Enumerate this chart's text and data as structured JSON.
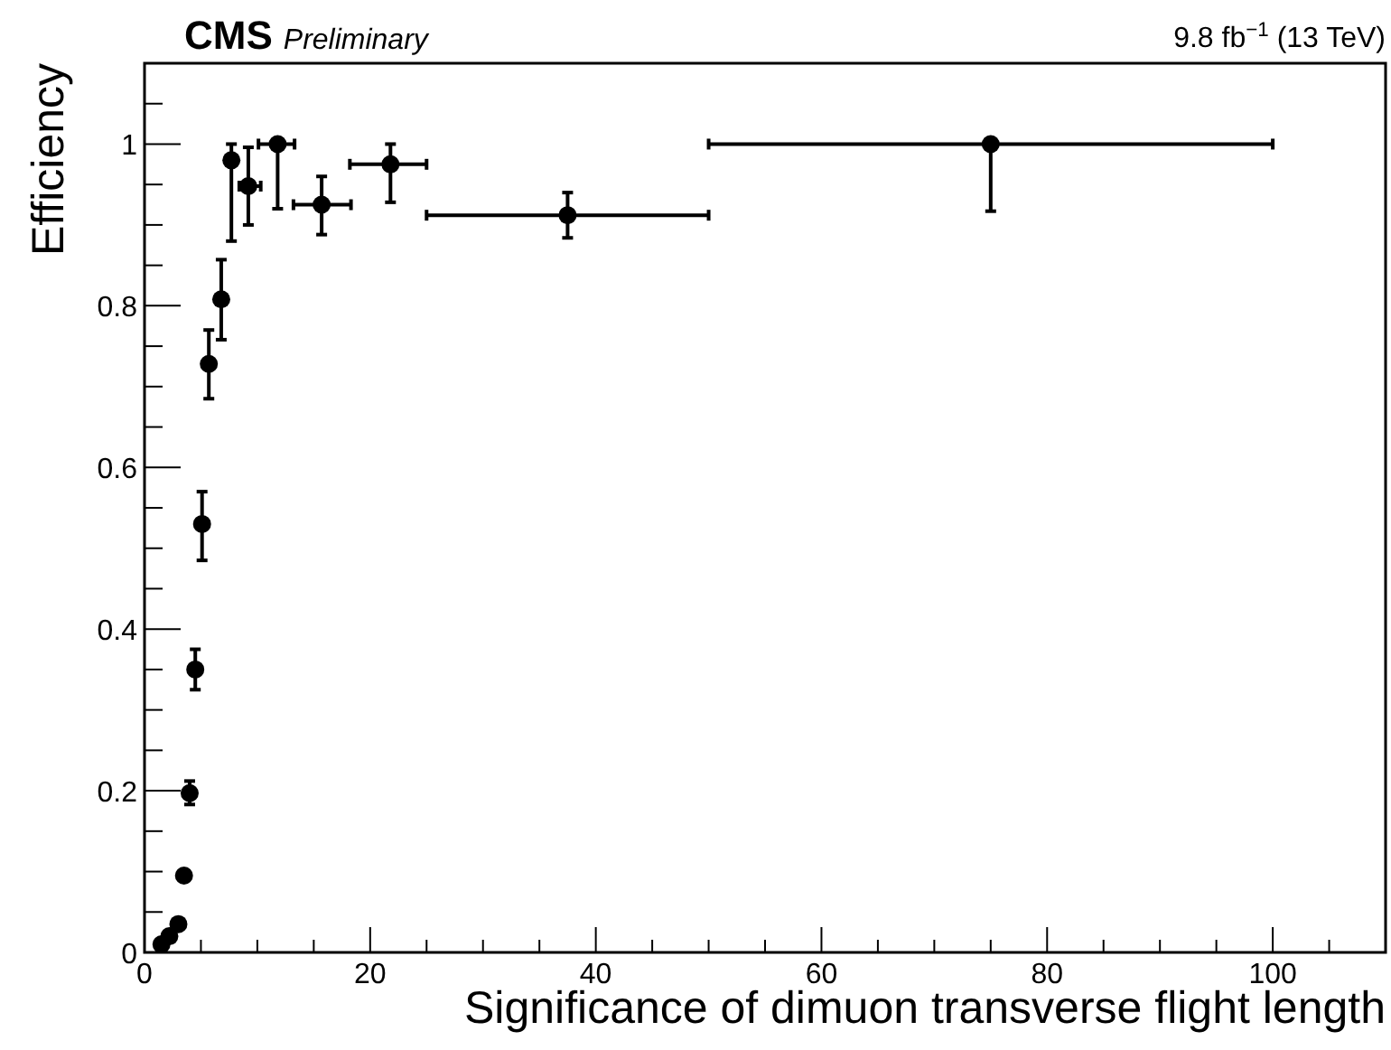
{
  "chart_data": {
    "type": "scatter",
    "title": "CMS",
    "subtitle": "Preliminary",
    "annotations": [
      "9.8 fb$^{−1}$ (13 TeV)"
    ],
    "xlabel": "Significance of dimuon transverse flight length",
    "ylabel": "Efficiency",
    "marker": "circle",
    "xlim": [
      0,
      110
    ],
    "ylim": [
      0,
      1.1
    ],
    "xticks": [
      0,
      {
        "value": 5,
        "label": null
      },
      {
        "value": 10,
        "label": null
      },
      {
        "value": 15,
        "label": null
      },
      20,
      {
        "value": 25,
        "label": null
      },
      {
        "value": 30,
        "label": null
      },
      {
        "value": 35,
        "label": null
      },
      40,
      {
        "value": 45,
        "label": null
      },
      {
        "value": 50,
        "label": null
      },
      {
        "value": 55,
        "label": null
      },
      60,
      {
        "value": 65,
        "label": null
      },
      {
        "value": 70,
        "label": null
      },
      {
        "value": 75,
        "label": null
      },
      80,
      {
        "value": 85,
        "label": null
      },
      {
        "value": 90,
        "label": null
      },
      {
        "value": 95,
        "label": null
      },
      100,
      {
        "value": 105,
        "label": null
      }
    ],
    "yticks": [
      0,
      {
        "value": 0.05,
        "label": null
      },
      {
        "value": 0.1,
        "label": null
      },
      {
        "value": 0.15,
        "label": null
      },
      0.2,
      {
        "value": 0.25,
        "label": null
      },
      {
        "value": 0.3,
        "label": null
      },
      {
        "value": 0.35,
        "label": null
      },
      0.4,
      {
        "value": 0.45,
        "label": null
      },
      {
        "value": 0.5,
        "label": null
      },
      {
        "value": 0.55,
        "label": null
      },
      0.6,
      {
        "value": 0.65,
        "label": null
      },
      {
        "value": 0.7,
        "label": null
      },
      {
        "value": 0.75,
        "label": null
      },
      0.8,
      {
        "value": 0.85,
        "label": null
      },
      {
        "value": 0.9,
        "label": null
      },
      {
        "value": 0.95,
        "label": null
      },
      1,
      {
        "value": 1.05,
        "label": null
      }
    ],
    "series": [
      {
        "color": "#000000",
        "x": [
          1.5,
          2.2,
          3.0,
          3.5,
          4.0,
          4.5,
          5.1,
          5.7,
          6.8,
          7.7,
          9.2,
          11.8,
          15.7,
          21.8,
          37.5,
          75
        ],
        "values": [
          0.01,
          0.02,
          0.035,
          0.095,
          0.197,
          0.35,
          0.53,
          0.728,
          0.808,
          0.98,
          0.948,
          1.0,
          0.925,
          0.975,
          0.912,
          1.0
        ],
        "errors": [
          null,
          null,
          null,
          null,
          [
            0.183,
            0.212
          ],
          [
            0.325,
            0.375
          ],
          [
            0.485,
            0.57
          ],
          [
            0.685,
            0.77
          ],
          [
            0.758,
            0.857
          ],
          [
            0.88,
            1.0
          ],
          [
            0.9,
            0.996
          ],
          [
            0.92,
            1.0
          ],
          [
            0.888,
            0.96
          ],
          [
            0.928,
            1.0
          ],
          [
            0.884,
            0.94
          ],
          [
            0.917,
            1.0
          ]
        ],
        "xerrors": [
          null,
          null,
          null,
          null,
          null,
          null,
          null,
          null,
          null,
          null,
          [
            8.4,
            10.3
          ],
          [
            10.1,
            13.3
          ],
          [
            13.2,
            18.3
          ],
          [
            18.2,
            25
          ],
          [
            25,
            50
          ],
          [
            50,
            100
          ]
        ]
      }
    ]
  }
}
